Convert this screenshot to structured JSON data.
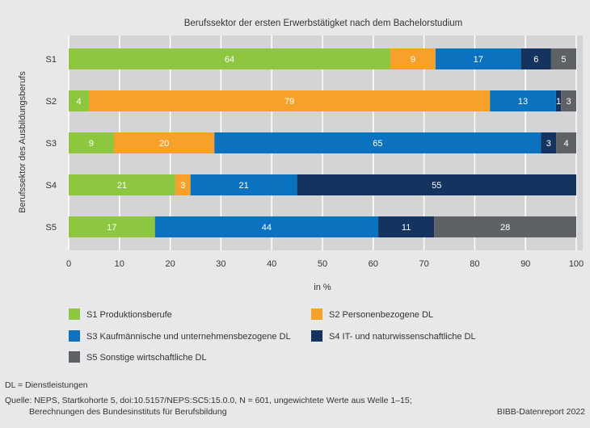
{
  "chart_data": {
    "type": "bar",
    "orientation": "horizontal",
    "stacked": true,
    "title": "Berufssektor der ersten Erwerbstätigket nach dem Bachelorstudium",
    "xlabel": "in %",
    "ylabel": "Berufssektor des Ausbildungsberufs",
    "xlim": [
      0,
      100
    ],
    "xticks": [
      0,
      10,
      20,
      30,
      40,
      50,
      60,
      70,
      80,
      90,
      100
    ],
    "grid": true,
    "legend_position": "bottom",
    "categories": [
      "S1",
      "S2",
      "S3",
      "S4",
      "S5"
    ],
    "series": [
      {
        "name": "S1 Produktionsberufe",
        "color": "#8dc63f",
        "values": [
          64,
          4,
          9,
          21,
          17
        ]
      },
      {
        "name": "S2 Personenbezogene DL",
        "color": "#f7a12a",
        "values": [
          9,
          79,
          20,
          3,
          0
        ]
      },
      {
        "name": "S3 Kaufmännische und unternehmensbezogene DL",
        "color": "#0b72bf",
        "values": [
          17,
          13,
          65,
          21,
          44
        ]
      },
      {
        "name": "S4 IT- und naturwissenschaftliche DL",
        "color": "#14345f",
        "values": [
          6,
          1,
          3,
          55,
          11
        ]
      },
      {
        "name": "S5 Sonstige wirtschaftliche DL",
        "color": "#5e6267",
        "values": [
          5,
          3,
          4,
          0,
          28
        ]
      }
    ]
  },
  "footer": {
    "note": "DL = Dienstleistungen",
    "source_line1": "Quelle: NEPS, Startkohorte 5, doi:10.5157/NEPS:SC5:15.0.0, N = 601, ungewichtete Werte aus Welle 1–15;",
    "source_line2": "Berechnungen des Bundesinstituts für Berufsbildung",
    "credit": "BIBB-Datenreport 2022"
  }
}
